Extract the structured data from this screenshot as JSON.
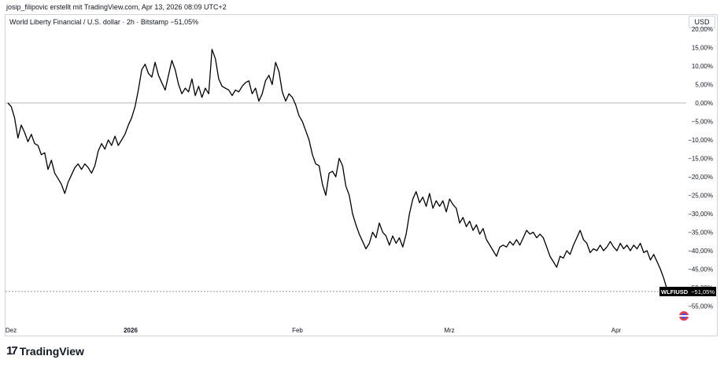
{
  "header": {
    "attribution": "josip_filipovic erstellt mit TradingView.com, Apr 13, 2026 08:09 UTC+2"
  },
  "symbol_line": "World Liberty Financial / U.S. dollar · 2h · Bitstamp  −51,05%",
  "currency_button": "USD",
  "ticker_label": {
    "symbol": "WLFIUSD",
    "value": "−51,05%"
  },
  "branding": {
    "logo_text": "TradingView",
    "logo_mark": "17"
  },
  "colors": {
    "line": "#000000",
    "zero_line": "#b2b5be",
    "label_bg": "#000000",
    "dashed": "#9598a1"
  },
  "chart_data": {
    "type": "line",
    "series": [
      {
        "values": [
          0.0,
          -1.0,
          -4.0,
          -9.5,
          -6.0,
          -8.0,
          -10.5,
          -8.5,
          -11.0,
          -11.5,
          -14.0,
          -13.5,
          -18.0,
          -15.5,
          -19.0,
          -20.5,
          -22.0,
          -24.5,
          -21.5,
          -19.5,
          -17.5,
          -16.5,
          -18.0,
          -16.5,
          -17.5,
          -19.0,
          -17.0,
          -13.0,
          -11.0,
          -12.5,
          -10.0,
          -11.5,
          -9.0,
          -11.5,
          -10.0,
          -8.5,
          -6.0,
          -4.0,
          -1.0,
          3.5,
          9.0,
          10.5,
          8.0,
          7.0,
          11.0,
          7.5,
          5.5,
          3.5,
          7.5,
          11.5,
          9.0,
          5.0,
          2.5,
          4.0,
          3.0,
          6.5,
          2.0,
          4.5,
          1.5,
          4.0,
          2.5,
          14.5,
          12.0,
          6.5,
          4.5,
          4.0,
          3.5,
          2.0,
          3.5,
          3.0,
          4.5,
          5.5,
          6.0,
          2.5,
          4.0,
          0.5,
          2.5,
          6.0,
          7.5,
          5.0,
          11.0,
          8.5,
          3.0,
          0.5,
          2.5,
          1.5,
          -0.5,
          -3.5,
          -5.0,
          -7.5,
          -10.0,
          -14.0,
          -16.5,
          -17.0,
          -22.0,
          -25.0,
          -19.0,
          -18.5,
          -20.0,
          -15.0,
          -17.0,
          -22.5,
          -25.0,
          -30.0,
          -33.0,
          -35.5,
          -37.5,
          -39.5,
          -38.0,
          -35.0,
          -36.5,
          -32.5,
          -35.0,
          -36.0,
          -38.5,
          -36.0,
          -38.0,
          -36.5,
          -39.0,
          -35.5,
          -30.0,
          -26.0,
          -24.0,
          -27.0,
          -25.5,
          -28.0,
          -24.5,
          -28.5,
          -26.5,
          -28.0,
          -26.5,
          -29.5,
          -26.0,
          -27.5,
          -28.5,
          -32.5,
          -31.0,
          -33.5,
          -32.0,
          -34.5,
          -33.0,
          -35.5,
          -34.0,
          -37.0,
          -38.5,
          -40.0,
          -41.5,
          -39.0,
          -38.5,
          -39.0,
          -37.5,
          -38.5,
          -37.0,
          -38.5,
          -36.5,
          -34.5,
          -35.5,
          -35.0,
          -36.5,
          -35.5,
          -36.5,
          -39.0,
          -41.5,
          -43.0,
          -44.5,
          -41.5,
          -42.0,
          -40.0,
          -41.0,
          -38.5,
          -36.5,
          -34.5,
          -37.0,
          -38.0,
          -40.5,
          -39.5,
          -40.0,
          -38.5,
          -40.0,
          -39.0,
          -37.5,
          -39.0,
          -40.0,
          -38.0,
          -39.5,
          -38.5,
          -40.0,
          -38.5,
          -39.5,
          -38.0,
          -40.5,
          -40.0,
          -42.5,
          -41.0,
          -43.0,
          -45.0,
          -47.5,
          -50.5,
          -51.05
        ]
      }
    ],
    "x_ticks": [
      "Dez",
      "2026",
      "Feb",
      "Mrz",
      "Apr"
    ],
    "y_ticks": [
      "20,00%",
      "15,00%",
      "10,00%",
      "5,00%",
      "0,00%",
      "−5,00%",
      "−10,00%",
      "−15,00%",
      "−20,00%",
      "−25,00%",
      "−30,00%",
      "−35,00%",
      "−40,00%",
      "−45,00%",
      "−50,00%",
      "−55,00%"
    ],
    "y_range": [
      -60,
      20
    ],
    "unit": "%",
    "last_value": -51.05
  }
}
